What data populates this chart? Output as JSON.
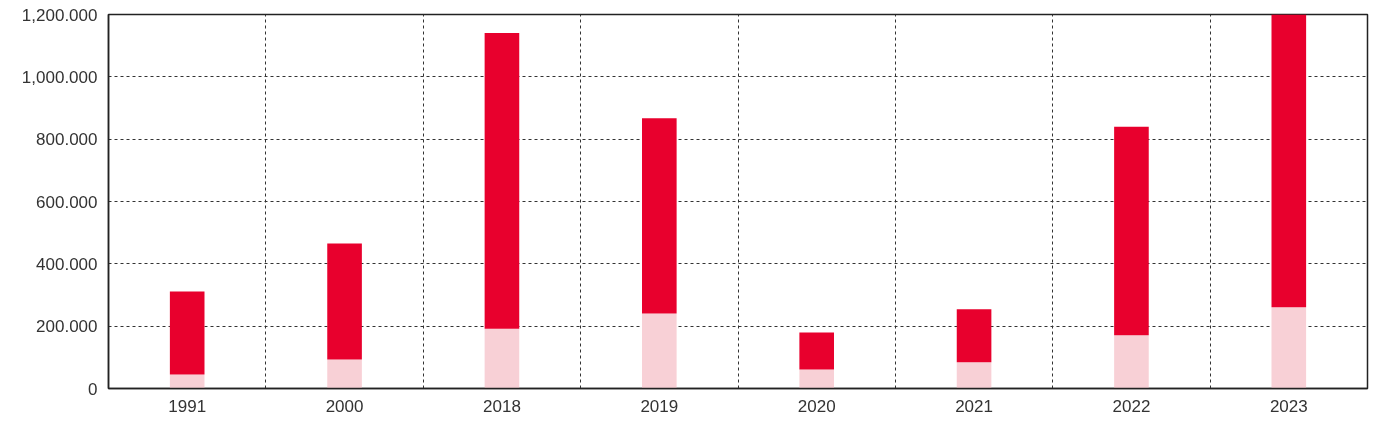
{
  "chart_data": {
    "type": "bar",
    "stacked": true,
    "categories": [
      "1991",
      "2000",
      "2018",
      "2019",
      "2020",
      "2021",
      "2022",
      "2023"
    ],
    "series": [
      {
        "color": "#f8d0d6",
        "values": [
          45,
          93,
          192,
          241,
          61,
          84,
          171,
          261
        ]
      },
      {
        "color": "#e8002d",
        "values": [
          266,
          372,
          949,
          626,
          119,
          170,
          669,
          939
        ]
      }
    ],
    "ylim": [
      0,
      1200
    ],
    "yticks": [
      0,
      {
        "value": 200,
        "label": "200.000"
      },
      {
        "value": 400,
        "label": "400.000"
      },
      {
        "value": 600,
        "label": "600.000"
      },
      {
        "value": 800,
        "label": "800.000"
      },
      {
        "value": 1000,
        "label": "1,000.000"
      },
      {
        "value": 1200,
        "label": "1,200.000"
      }
    ],
    "grid": true
  }
}
